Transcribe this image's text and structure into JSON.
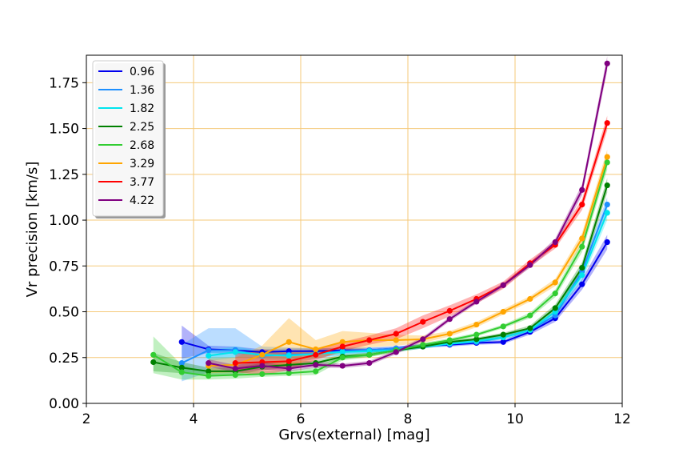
{
  "chart_data": {
    "type": "line",
    "xlabel": "Grvs(external) [mag]",
    "ylabel": "Vr precision [km/s]",
    "xlim": [
      2,
      12
    ],
    "ylim": [
      0,
      1.9
    ],
    "xticks": [
      "2",
      "4",
      "6",
      "8",
      "10",
      "12"
    ],
    "xtick_values": [
      2,
      4,
      6,
      8,
      10,
      12
    ],
    "yticks": [
      "0.00",
      "0.25",
      "0.50",
      "0.75",
      "1.00",
      "1.25",
      "1.50",
      "1.75"
    ],
    "ytick_values": [
      0,
      0.25,
      0.5,
      0.75,
      1.0,
      1.25,
      1.5,
      1.75
    ],
    "grid": true,
    "grid_color": "#f5c97a",
    "legend_position": "top-left",
    "series": [
      {
        "name": "0.96",
        "color": "#0000ee",
        "x": [
          3.78,
          4.28,
          4.78,
          5.28,
          5.78,
          6.28,
          6.78,
          7.28,
          7.78,
          8.28,
          8.78,
          9.28,
          9.78,
          10.28,
          10.75,
          11.25,
          11.72
        ],
        "y": [
          0.335,
          0.295,
          0.29,
          0.28,
          0.285,
          0.285,
          0.29,
          0.29,
          0.3,
          0.315,
          0.32,
          0.33,
          0.335,
          0.39,
          0.465,
          0.65,
          0.88
        ],
        "err": [
          0.09,
          0.02,
          0.02,
          0.015,
          0.015,
          0.015,
          0.012,
          0.012,
          0.01,
          0.01,
          0.01,
          0.01,
          0.01,
          0.015,
          0.02,
          0.03,
          0.04
        ]
      },
      {
        "name": "1.36",
        "color": "#1e90ff",
        "x": [
          3.78,
          4.28,
          4.78,
          5.28,
          5.78,
          6.28,
          6.78,
          7.28,
          7.78,
          8.28,
          8.78,
          9.28,
          9.78,
          10.28,
          10.75,
          11.25,
          11.72
        ],
        "y": [
          0.22,
          0.29,
          0.29,
          0.26,
          0.265,
          0.27,
          0.285,
          0.29,
          0.3,
          0.31,
          0.325,
          0.335,
          0.36,
          0.4,
          0.48,
          0.72,
          1.085
        ],
        "err": [
          0.1,
          0.12,
          0.12,
          0.05,
          0.04,
          0.03,
          0.02,
          0.015,
          0.012,
          0.01,
          0.01,
          0.01,
          0.01,
          0.015,
          0.02,
          0.03,
          0.04
        ]
      },
      {
        "name": "1.82",
        "color": "#00e5ee",
        "x": [
          4.28,
          4.78,
          5.28,
          5.78,
          6.28,
          6.78,
          7.28,
          7.78,
          8.28,
          8.78,
          9.28,
          9.78,
          10.28,
          10.75,
          11.25,
          11.72
        ],
        "y": [
          0.26,
          0.28,
          0.265,
          0.26,
          0.27,
          0.28,
          0.285,
          0.29,
          0.31,
          0.325,
          0.34,
          0.36,
          0.4,
          0.5,
          0.7,
          1.04
        ],
        "err": [
          0.03,
          0.03,
          0.02,
          0.02,
          0.02,
          0.015,
          0.012,
          0.01,
          0.01,
          0.01,
          0.01,
          0.01,
          0.015,
          0.02,
          0.03,
          0.04
        ]
      },
      {
        "name": "2.25",
        "color": "#008000",
        "x": [
          3.25,
          3.78,
          4.28,
          4.78,
          5.28,
          5.78,
          6.28,
          6.78,
          7.28,
          7.78,
          8.28,
          8.78,
          9.28,
          9.78,
          10.28,
          10.75,
          11.25,
          11.72
        ],
        "y": [
          0.225,
          0.195,
          0.175,
          0.175,
          0.2,
          0.21,
          0.22,
          0.255,
          0.265,
          0.29,
          0.31,
          0.335,
          0.35,
          0.375,
          0.41,
          0.52,
          0.74,
          1.19
        ],
        "err": [
          0.05,
          0.03,
          0.02,
          0.02,
          0.02,
          0.015,
          0.015,
          0.012,
          0.01,
          0.01,
          0.01,
          0.01,
          0.01,
          0.01,
          0.015,
          0.02,
          0.03,
          0.04
        ]
      },
      {
        "name": "2.68",
        "color": "#32cd32",
        "x": [
          3.25,
          3.78,
          4.28,
          4.78,
          5.28,
          5.78,
          6.28,
          6.78,
          7.28,
          7.78,
          8.28,
          8.78,
          9.28,
          9.78,
          10.28,
          10.75,
          11.25,
          11.72
        ],
        "y": [
          0.265,
          0.17,
          0.15,
          0.155,
          0.16,
          0.165,
          0.175,
          0.25,
          0.265,
          0.29,
          0.32,
          0.345,
          0.375,
          0.42,
          0.48,
          0.6,
          0.855,
          1.315
        ],
        "err": [
          0.1,
          0.04,
          0.02,
          0.02,
          0.015,
          0.015,
          0.02,
          0.015,
          0.012,
          0.01,
          0.01,
          0.01,
          0.01,
          0.01,
          0.015,
          0.02,
          0.03,
          0.04
        ]
      },
      {
        "name": "3.29",
        "color": "#ffa500",
        "x": [
          4.28,
          4.78,
          5.28,
          5.78,
          6.28,
          6.78,
          7.28,
          7.78,
          8.28,
          8.78,
          9.28,
          9.78,
          10.28,
          10.75,
          11.25,
          11.72
        ],
        "y": [
          0.205,
          0.21,
          0.265,
          0.335,
          0.295,
          0.335,
          0.345,
          0.345,
          0.35,
          0.38,
          0.43,
          0.5,
          0.57,
          0.66,
          0.9,
          1.345
        ],
        "err": [
          0.04,
          0.04,
          0.05,
          0.13,
          0.05,
          0.06,
          0.04,
          0.03,
          0.02,
          0.015,
          0.015,
          0.015,
          0.015,
          0.02,
          0.03,
          0.04
        ]
      },
      {
        "name": "3.77",
        "color": "#ff0000",
        "x": [
          4.78,
          5.28,
          5.78,
          6.28,
          6.78,
          7.28,
          7.78,
          8.28,
          8.78,
          9.28,
          9.78,
          10.28,
          10.75,
          11.25,
          11.72
        ],
        "y": [
          0.22,
          0.225,
          0.23,
          0.265,
          0.31,
          0.345,
          0.38,
          0.445,
          0.505,
          0.57,
          0.645,
          0.765,
          0.865,
          1.085,
          1.53
        ],
        "err": [
          0.05,
          0.07,
          0.05,
          0.03,
          0.025,
          0.025,
          0.03,
          0.035,
          0.03,
          0.025,
          0.02,
          0.02,
          0.02,
          0.03,
          0.04
        ]
      },
      {
        "name": "4.22",
        "color": "#800080",
        "x": [
          4.28,
          4.78,
          5.28,
          5.78,
          6.28,
          6.78,
          7.28,
          7.78,
          8.28,
          8.78,
          9.28,
          9.78,
          10.28,
          10.75,
          11.25,
          11.72
        ],
        "y": [
          0.22,
          0.19,
          0.205,
          0.19,
          0.21,
          0.205,
          0.22,
          0.28,
          0.35,
          0.46,
          0.555,
          0.645,
          0.755,
          0.88,
          1.165,
          1.855
        ],
        "err": [
          0.02,
          0.02,
          0.02,
          0.015,
          0.015,
          0.012,
          0.012,
          0.012,
          0.012,
          0.012,
          0.012,
          0.012,
          0.015,
          0.02,
          0.03,
          0.04
        ]
      }
    ]
  }
}
